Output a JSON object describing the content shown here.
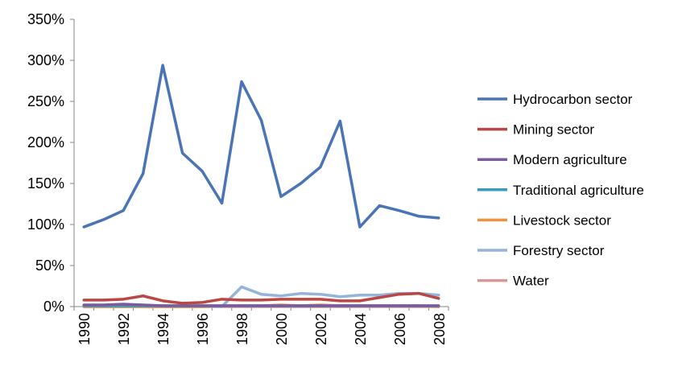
{
  "chart_data": {
    "type": "line",
    "x": [
      "1990",
      "1991",
      "1992",
      "1993",
      "1994",
      "1995",
      "1996",
      "1997",
      "1998",
      "1999",
      "2000",
      "2001",
      "2002",
      "2003",
      "2004",
      "2005",
      "2006",
      "2007",
      "2008"
    ],
    "x_tick_labels": [
      "1990",
      "1992",
      "1994",
      "1996",
      "1998",
      "2000",
      "2002",
      "2004",
      "2006",
      "2008"
    ],
    "ylim": [
      0,
      350
    ],
    "y_tick_labels": [
      "0%",
      "50%",
      "100%",
      "150%",
      "200%",
      "250%",
      "300%",
      "350%"
    ],
    "y_unit": "%",
    "grid": false,
    "legend_position": "right",
    "series": [
      {
        "name": "Hydrocarbon sector",
        "color": "#4a74b5",
        "values": [
          97,
          106,
          117,
          162,
          294,
          187,
          165,
          126,
          274,
          227,
          134,
          150,
          170,
          226,
          97,
          123,
          117,
          110,
          108
        ]
      },
      {
        "name": "Mining sector",
        "color": "#b94743",
        "values": [
          8,
          8,
          9,
          13,
          7,
          4,
          5,
          9,
          8,
          8,
          9,
          9,
          9,
          7,
          7,
          11,
          15,
          16,
          10
        ]
      },
      {
        "name": "Modern agriculture",
        "color": "#7b5a9e",
        "values": [
          2,
          2,
          3,
          2,
          1,
          1,
          1,
          1,
          1,
          1,
          1,
          1,
          1,
          1,
          1,
          1,
          1,
          1,
          1
        ]
      },
      {
        "name": "Traditional agriculture",
        "color": "#3a9bbf",
        "values": [
          1,
          1,
          1,
          1,
          1,
          1,
          1,
          1,
          1,
          1,
          1,
          1,
          1,
          1,
          1,
          1,
          1,
          1,
          1
        ]
      },
      {
        "name": "Livestock sector",
        "color": "#f0913f",
        "values": [
          0,
          0,
          0,
          0,
          0,
          0,
          0,
          1,
          1,
          1,
          2,
          1,
          2,
          1,
          1,
          1,
          1,
          1,
          0
        ]
      },
      {
        "name": "Forestry sector",
        "color": "#94b4db",
        "values": [
          0,
          0,
          0,
          0,
          0,
          0,
          0,
          0,
          24,
          15,
          13,
          16,
          15,
          12,
          14,
          14,
          16,
          16,
          14
        ]
      },
      {
        "name": "Water",
        "color": "#d99694",
        "values": [
          0,
          0,
          0,
          0,
          0,
          0,
          0,
          0,
          0,
          0,
          0,
          0,
          0,
          0,
          0,
          0,
          0,
          0,
          0
        ]
      }
    ]
  }
}
